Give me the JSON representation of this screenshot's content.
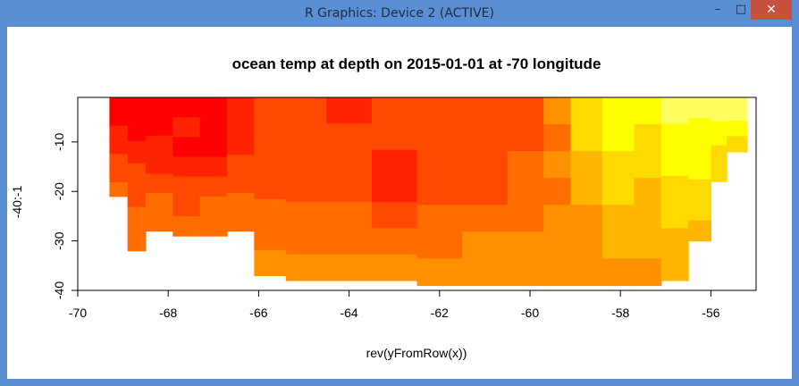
{
  "window": {
    "title": "R Graphics: Device 2 (ACTIVE)",
    "minimize_glyph": "–",
    "maximize_glyph": "□",
    "close_glyph": "✕"
  },
  "chart_data": {
    "type": "heatmap",
    "title": "ocean temp at depth on 2015-01-01 at -70 longitude",
    "xlabel": "rev(yFromRow(x))",
    "ylabel": "-40:-1",
    "xlim": [
      -70,
      -55
    ],
    "ylim": [
      -40,
      -1
    ],
    "x_ticks": [
      -70,
      -68,
      -66,
      -64,
      -62,
      -60,
      -58,
      -56
    ],
    "x_tick_labels": [
      "-70",
      "-68",
      "-66",
      "-64",
      "-62",
      "-60",
      "-58",
      "-56"
    ],
    "y_ticks": [
      -40,
      -30,
      -20,
      -10
    ],
    "y_tick_labels": [
      "-40",
      "-30",
      "-20",
      "-10"
    ],
    "color_scale": "heat.colors (red = low, yellow/white = high)",
    "colors": [
      "#ff0000",
      "#ff2400",
      "#ff4800",
      "#ff6d00",
      "#ff9100",
      "#ffb600",
      "#ffda00",
      "#ffff00",
      "#ffff60"
    ],
    "grid": false,
    "legend": "none",
    "columns": [
      {
        "x": -69.0,
        "bottom_depth": -21,
        "levels": [
          0,
          0,
          1,
          1,
          2,
          2,
          3
        ]
      },
      {
        "x": -68.8,
        "bottom_depth": -32,
        "levels": [
          0,
          0,
          1,
          2,
          2,
          3,
          3
        ]
      },
      {
        "x": -68.2,
        "bottom_depth": -28,
        "levels": [
          0,
          0,
          1,
          1,
          2,
          3,
          3
        ]
      },
      {
        "x": -67.6,
        "bottom_depth": -29,
        "levels": [
          0,
          1,
          0,
          1,
          2,
          2,
          3
        ]
      },
      {
        "x": -67.0,
        "bottom_depth": -29,
        "levels": [
          0,
          0,
          0,
          1,
          2,
          3,
          3
        ]
      },
      {
        "x": -66.4,
        "bottom_depth": -28,
        "levels": [
          1,
          1,
          1,
          2,
          2,
          3,
          3
        ]
      },
      {
        "x": -65.8,
        "bottom_depth": -37,
        "levels": [
          2,
          2,
          2,
          2,
          3,
          3,
          4
        ]
      },
      {
        "x": -65.0,
        "bottom_depth": -38,
        "levels": [
          2,
          2,
          2,
          2,
          3,
          3,
          4
        ]
      },
      {
        "x": -64.0,
        "bottom_depth": -38,
        "levels": [
          1,
          2,
          2,
          2,
          3,
          3,
          4
        ]
      },
      {
        "x": -63.0,
        "bottom_depth": -38,
        "levels": [
          2,
          2,
          1,
          1,
          2,
          3,
          4
        ]
      },
      {
        "x": -62.0,
        "bottom_depth": -39,
        "levels": [
          2,
          2,
          2,
          2,
          3,
          3,
          4
        ]
      },
      {
        "x": -61.0,
        "bottom_depth": -39,
        "levels": [
          2,
          2,
          2,
          2,
          3,
          4,
          4
        ]
      },
      {
        "x": -60.0,
        "bottom_depth": -39,
        "levels": [
          2,
          2,
          3,
          3,
          3,
          4,
          4
        ]
      },
      {
        "x": -59.4,
        "bottom_depth": -39,
        "levels": [
          4,
          3,
          4,
          3,
          4,
          4,
          4
        ]
      },
      {
        "x": -58.8,
        "bottom_depth": -39,
        "levels": [
          6,
          6,
          5,
          5,
          4,
          4,
          4
        ]
      },
      {
        "x": -58.0,
        "bottom_depth": -39,
        "levels": [
          7,
          7,
          6,
          6,
          5,
          5,
          4
        ]
      },
      {
        "x": -57.4,
        "bottom_depth": -39,
        "levels": [
          7,
          6,
          6,
          5,
          5,
          5,
          4
        ]
      },
      {
        "x": -56.8,
        "bottom_depth": -38,
        "levels": [
          8,
          7,
          7,
          6,
          6,
          5,
          5
        ]
      },
      {
        "x": -56.2,
        "bottom_depth": -30,
        "levels": [
          8,
          7,
          7,
          7,
          6,
          6,
          5
        ]
      },
      {
        "x": -55.8,
        "bottom_depth": -18,
        "levels": [
          8,
          8,
          7,
          7,
          6,
          6,
          6
        ]
      },
      {
        "x": -55.5,
        "bottom_depth": -12,
        "levels": [
          8,
          8,
          8,
          7,
          7,
          6,
          6
        ]
      }
    ]
  }
}
